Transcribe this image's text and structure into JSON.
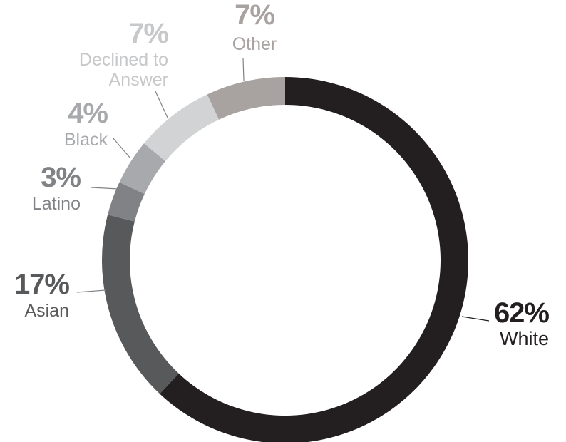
{
  "chart_data": {
    "type": "pie",
    "variant": "donut",
    "title": "",
    "start": "top, clockwise",
    "slices": [
      {
        "key": "white",
        "label": "White",
        "value": 62,
        "value_label": "62%",
        "color": "#231f20",
        "text_color": "#231f20",
        "label_lines": [
          "White"
        ]
      },
      {
        "key": "asian",
        "label": "Asian",
        "value": 17,
        "value_label": "17%",
        "color": "#58595b",
        "text_color": "#58595b",
        "label_lines": [
          "Asian"
        ]
      },
      {
        "key": "latino",
        "label": "Latino",
        "value": 3,
        "value_label": "3%",
        "color": "#808285",
        "text_color": "#808285",
        "label_lines": [
          "Latino"
        ]
      },
      {
        "key": "black",
        "label": "Black",
        "value": 4,
        "value_label": "4%",
        "color": "#a7a9ac",
        "text_color": "#a7a9ac",
        "label_lines": [
          "Black"
        ]
      },
      {
        "key": "declined",
        "label": "Declined to Answer",
        "value": 7,
        "value_label": "7%",
        "color": "#d1d3d4",
        "text_color": "#c7c8ca",
        "label_lines": [
          "Declined to",
          "Answer"
        ]
      },
      {
        "key": "other",
        "label": "Other",
        "value": 7,
        "value_label": "7%",
        "color": "#a8a3a1",
        "text_color": "#a8a3a1",
        "label_lines": [
          "Other"
        ]
      }
    ]
  }
}
